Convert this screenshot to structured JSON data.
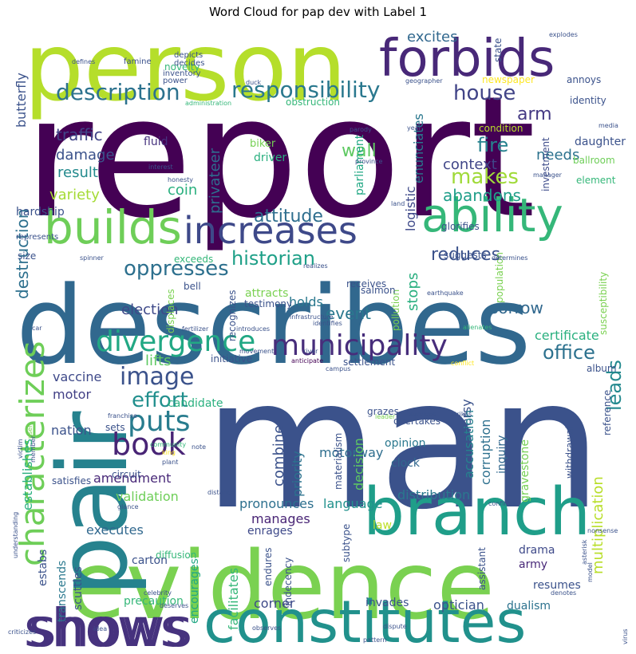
{
  "title": "Word Cloud for pap dev with Label 1",
  "words": [
    {
      "text": "report",
      "color": "#440154"
    },
    {
      "text": "man",
      "color": "#3b528b"
    },
    {
      "text": "describes",
      "color": "#31688e"
    },
    {
      "text": "person",
      "color": "#b5de2b"
    },
    {
      "text": "evidence",
      "color": "#7ad151"
    },
    {
      "text": "pair",
      "color": "#26828e"
    },
    {
      "text": "branch",
      "color": "#1f9e89"
    },
    {
      "text": "constitutes",
      "color": "#21918c"
    },
    {
      "text": "shows",
      "color": "#46327e"
    },
    {
      "text": "forbids",
      "color": "#482878"
    },
    {
      "text": "ability",
      "color": "#35b779"
    },
    {
      "text": "builds",
      "color": "#6ece58"
    },
    {
      "text": "increases",
      "color": "#3e4989"
    },
    {
      "text": "characterizes",
      "color": "#6ece58"
    },
    {
      "text": "municipality",
      "color": "#472d7b"
    },
    {
      "text": "divergence",
      "color": "#22a884"
    },
    {
      "text": "responsibility",
      "color": "#2a788e"
    },
    {
      "text": "description",
      "color": "#2c728e"
    },
    {
      "text": "house",
      "color": "#414487"
    },
    {
      "text": "book",
      "color": "#482475"
    },
    {
      "text": "puts",
      "color": "#287c8e"
    },
    {
      "text": "image",
      "color": "#3b528b"
    },
    {
      "text": "oppresses",
      "color": "#2d708e"
    },
    {
      "text": "historian",
      "color": "#1fa088"
    },
    {
      "text": "attitude",
      "color": "#2e6e8e"
    },
    {
      "text": "reduces",
      "color": "#3b528b"
    },
    {
      "text": "effort",
      "color": "#218f8d"
    },
    {
      "text": "office",
      "color": "#2c718e"
    },
    {
      "text": "leads",
      "color": "#23898e"
    },
    {
      "text": "excites",
      "color": "#31688e"
    },
    {
      "text": "fire",
      "color": "#26828e"
    },
    {
      "text": "makes",
      "color": "#a0da39"
    },
    {
      "text": "arm",
      "color": "#443983"
    },
    {
      "text": "needs",
      "color": "#2c728e"
    },
    {
      "text": "wall",
      "color": "#5ec962"
    },
    {
      "text": "context",
      "color": "#404688"
    },
    {
      "text": "abandons",
      "color": "#1f9e89"
    },
    {
      "text": "traffic",
      "color": "#414487"
    },
    {
      "text": "damage",
      "color": "#3b528b"
    },
    {
      "text": "result",
      "color": "#238a8d"
    },
    {
      "text": "coin",
      "color": "#2ab07f"
    },
    {
      "text": "variety",
      "color": "#a5db36"
    },
    {
      "text": "fluid",
      "color": "#46327e"
    },
    {
      "text": "biker",
      "color": "#75d054"
    },
    {
      "text": "driver",
      "color": "#29af7f"
    },
    {
      "text": "destruction",
      "color": "#2d708e"
    },
    {
      "text": "butterfly",
      "color": "#3b528b"
    },
    {
      "text": "privateer",
      "color": "#2f6c8e"
    },
    {
      "text": "parliament",
      "color": "#22a884"
    },
    {
      "text": "enunciates",
      "color": "#2a788e"
    },
    {
      "text": "logistic",
      "color": "#3e4989"
    },
    {
      "text": "investment",
      "color": "#3e4c8a"
    },
    {
      "text": "daughter",
      "color": "#3b528b"
    },
    {
      "text": "ballroom",
      "color": "#6ece58"
    },
    {
      "text": "element",
      "color": "#35b779"
    },
    {
      "text": "condition",
      "color": "#b8de29"
    },
    {
      "text": "election",
      "color": "#3e4989"
    },
    {
      "text": "event",
      "color": "#2a788e"
    },
    {
      "text": "holds",
      "color": "#2a788e"
    },
    {
      "text": "stops",
      "color": "#29af7f"
    },
    {
      "text": "sorrow",
      "color": "#31688e"
    },
    {
      "text": "certificate",
      "color": "#2ab07f"
    },
    {
      "text": "lifts",
      "color": "#5ec962"
    },
    {
      "text": "vaccine",
      "color": "#3e4989"
    },
    {
      "text": "motor",
      "color": "#424086"
    },
    {
      "text": "candidate",
      "color": "#2ab07f"
    },
    {
      "text": "nation",
      "color": "#3b528b"
    },
    {
      "text": "amendment",
      "color": "#482878"
    },
    {
      "text": "validation",
      "color": "#6ece58"
    },
    {
      "text": "executes",
      "color": "#31688e"
    },
    {
      "text": "pronounces",
      "color": "#2d708e"
    },
    {
      "text": "manages",
      "color": "#482475"
    },
    {
      "text": "enrages",
      "color": "#3e4989"
    },
    {
      "text": "language",
      "color": "#21918c"
    },
    {
      "text": "law",
      "color": "#bddf26"
    },
    {
      "text": "distribution",
      "color": "#2a788e"
    },
    {
      "text": "motorway",
      "color": "#2e6e8e"
    },
    {
      "text": "controversy",
      "color": "#3b528b"
    },
    {
      "text": "corruption",
      "color": "#2d708e"
    },
    {
      "text": "accusation",
      "color": "#26828e"
    },
    {
      "text": "inquiry",
      "color": "#31688e"
    },
    {
      "text": "gravestone",
      "color": "#75d054"
    },
    {
      "text": "multiplication",
      "color": "#b8de29"
    },
    {
      "text": "combine",
      "color": "#3b528b"
    },
    {
      "text": "priority",
      "color": "#2c728e"
    },
    {
      "text": "decision",
      "color": "#5ec962"
    },
    {
      "text": "clock",
      "color": "#31688e"
    },
    {
      "text": "opinion",
      "color": "#2a788e"
    },
    {
      "text": "corner",
      "color": "#3e4989"
    },
    {
      "text": "facilitates",
      "color": "#35b779"
    },
    {
      "text": "shows2",
      "color": "#46327e"
    },
    {
      "text": "optician",
      "color": "#3b528b"
    },
    {
      "text": "dualism",
      "color": "#2c728e"
    },
    {
      "text": "invades",
      "color": "#3b528b"
    },
    {
      "text": "resumes",
      "color": "#3b528b"
    },
    {
      "text": "army",
      "color": "#482878"
    },
    {
      "text": "drama",
      "color": "#3e4989"
    },
    {
      "text": "estabs",
      "color": "#3b528b"
    },
    {
      "text": "establishes",
      "color": "#2ab07f"
    },
    {
      "text": "transcends",
      "color": "#2a788e"
    },
    {
      "text": "scuttles",
      "color": "#3b528b"
    },
    {
      "text": "carton",
      "color": "#3b528b"
    },
    {
      "text": "precaution",
      "color": "#35b779"
    },
    {
      "text": "encourages",
      "color": "#22a884"
    },
    {
      "text": "endures",
      "color": "#3b528b"
    },
    {
      "text": "indecency",
      "color": "#3b528b"
    },
    {
      "text": "subtype",
      "color": "#3b528b"
    },
    {
      "text": "assistant",
      "color": "#3b528b"
    },
    {
      "text": "diffusion",
      "color": "#35b779"
    },
    {
      "text": "satisfies",
      "color": "#3b528b"
    },
    {
      "text": "circuit",
      "color": "#3b528b"
    },
    {
      "text": "sets",
      "color": "#3b528b"
    },
    {
      "text": "size",
      "color": "#3b528b"
    },
    {
      "text": "hardship",
      "color": "#3b528b"
    },
    {
      "text": "exceeds",
      "color": "#35b779"
    },
    {
      "text": "displaces",
      "color": "#7ad151"
    },
    {
      "text": "bell",
      "color": "#3b528b"
    },
    {
      "text": "attracts",
      "color": "#7ad151"
    },
    {
      "text": "testimony",
      "color": "#3b528b"
    },
    {
      "text": "recognizes",
      "color": "#3b528b"
    },
    {
      "text": "receives",
      "color": "#3b528b"
    },
    {
      "text": "pollution",
      "color": "#7ad151"
    },
    {
      "text": "population",
      "color": "#7ad151"
    },
    {
      "text": "susceptibility",
      "color": "#7ad151"
    },
    {
      "text": "suggests",
      "color": "#3b528b"
    },
    {
      "text": "glorifies",
      "color": "#3b528b"
    },
    {
      "text": "salmon",
      "color": "#3b528b"
    },
    {
      "text": "initiative",
      "color": "#3b528b"
    },
    {
      "text": "settlement",
      "color": "#3b528b"
    },
    {
      "text": "album",
      "color": "#3b528b"
    },
    {
      "text": "reference",
      "color": "#3b528b"
    },
    {
      "text": "withdrawal",
      "color": "#3b528b"
    },
    {
      "text": "materialism",
      "color": "#3b528b"
    },
    {
      "text": "overtakes",
      "color": "#3b528b"
    },
    {
      "text": "grazes",
      "color": "#3b528b"
    },
    {
      "text": "novelty",
      "color": "#35b779"
    },
    {
      "text": "newspaper",
      "color": "#fde725"
    },
    {
      "text": "annoys",
      "color": "#3b528b"
    },
    {
      "text": "identity",
      "color": "#3b528b"
    },
    {
      "text": "state",
      "color": "#3b528b"
    },
    {
      "text": "obstruction",
      "color": "#35b779"
    },
    {
      "text": "explodes",
      "color": "#3b528b"
    },
    {
      "text": "inventory",
      "color": "#3b528b"
    },
    {
      "text": "power",
      "color": "#3b528b"
    },
    {
      "text": "famine",
      "color": "#3b528b"
    },
    {
      "text": "depicts",
      "color": "#3b528b"
    },
    {
      "text": "decides",
      "color": "#3b528b"
    },
    {
      "text": "duck",
      "color": "#3b528b"
    },
    {
      "text": "administration",
      "color": "#35b779"
    },
    {
      "text": "geographer",
      "color": "#3b528b"
    },
    {
      "text": "media",
      "color": "#3b528b"
    },
    {
      "text": "parody",
      "color": "#3b528b"
    },
    {
      "text": "year",
      "color": "#3b528b"
    },
    {
      "text": "province",
      "color": "#3b528b"
    },
    {
      "text": "interest",
      "color": "#3b528b"
    },
    {
      "text": "honesty",
      "color": "#3b528b"
    },
    {
      "text": "manager",
      "color": "#3b528b"
    },
    {
      "text": "land",
      "color": "#3b528b"
    },
    {
      "text": "spinner",
      "color": "#3b528b"
    },
    {
      "text": "realizes",
      "color": "#3b528b"
    },
    {
      "text": "determines",
      "color": "#3b528b"
    },
    {
      "text": "infrastructure",
      "color": "#3b528b"
    },
    {
      "text": "earthquake",
      "color": "#3b528b"
    },
    {
      "text": "car",
      "color": "#3b528b"
    },
    {
      "text": "fertilizer",
      "color": "#3b528b"
    },
    {
      "text": "introduces",
      "color": "#3b528b"
    },
    {
      "text": "movement",
      "color": "#3b528b"
    },
    {
      "text": "river",
      "color": "#3b528b"
    },
    {
      "text": "alienates",
      "color": "#35b779"
    },
    {
      "text": "identifies",
      "color": "#3b528b"
    },
    {
      "text": "anticipate",
      "color": "#440154"
    },
    {
      "text": "campus",
      "color": "#3b528b"
    },
    {
      "text": "conflict",
      "color": "#fde725"
    },
    {
      "text": "franchise",
      "color": "#3b528b"
    },
    {
      "text": "strikes",
      "color": "#3b528b"
    },
    {
      "text": "survives",
      "color": "#3b528b"
    },
    {
      "text": "leader",
      "color": "#7ad151"
    },
    {
      "text": "user",
      "color": "#7ad151"
    },
    {
      "text": "victim",
      "color": "#3b528b"
    },
    {
      "text": "member",
      "color": "#3b528b"
    },
    {
      "text": "community",
      "color": "#35b779"
    },
    {
      "text": "note",
      "color": "#3b528b"
    },
    {
      "text": "king",
      "color": "#fde725"
    },
    {
      "text": "plant",
      "color": "#3b528b"
    },
    {
      "text": "distance",
      "color": "#3b528b"
    },
    {
      "text": "confirms",
      "color": "#3b528b"
    },
    {
      "text": "glance",
      "color": "#3b528b"
    },
    {
      "text": "understanding",
      "color": "#3b528b"
    },
    {
      "text": "criticizes",
      "color": "#3b528b"
    },
    {
      "text": "nonsense",
      "color": "#3b528b"
    },
    {
      "text": "model",
      "color": "#3b528b"
    },
    {
      "text": "asterisk",
      "color": "#3b528b"
    },
    {
      "text": "denotes",
      "color": "#3b528b"
    },
    {
      "text": "dispute",
      "color": "#3b528b"
    },
    {
      "text": "celebrity",
      "color": "#3b528b"
    },
    {
      "text": "idea",
      "color": "#3b528b"
    },
    {
      "text": "observes",
      "color": "#3b528b"
    },
    {
      "text": "deserves",
      "color": "#3b528b"
    },
    {
      "text": "pattern",
      "color": "#3b528b"
    },
    {
      "text": "virus",
      "color": "#3b528b"
    },
    {
      "text": "defines",
      "color": "#3b528b"
    },
    {
      "text": "represents",
      "color": "#3b528b"
    },
    {
      "text": "hardship2",
      "color": "#3b528b"
    }
  ]
}
